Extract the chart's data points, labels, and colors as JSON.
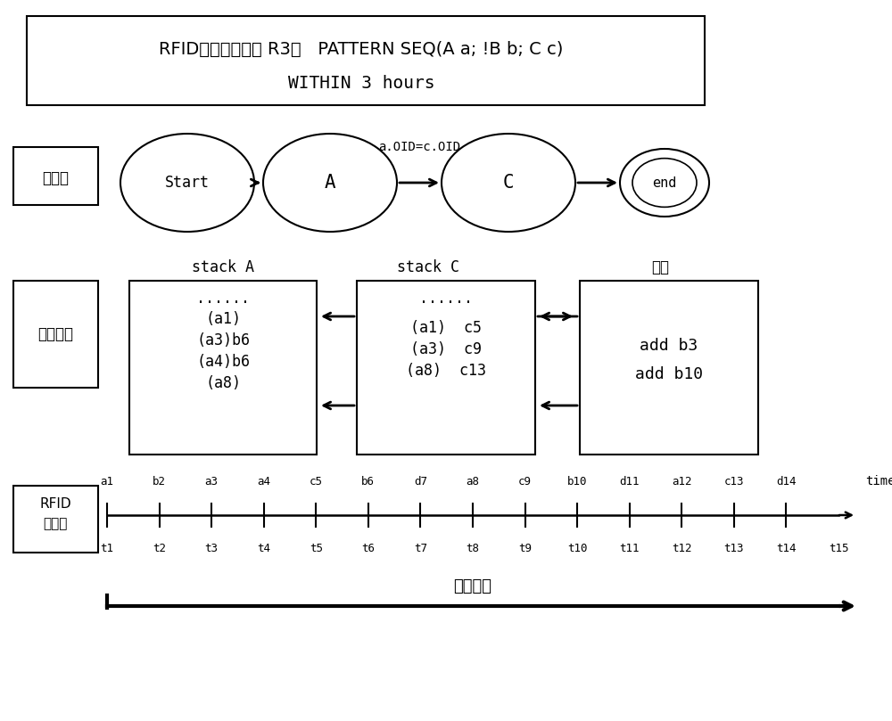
{
  "title_line1": "RFID补充漏读规则 R3：   PATTERN SEQ(A a; !B b; C c)",
  "title_line2": "WITHIN 3 hours",
  "auto_label": "自动机",
  "stack_section_label": "自动机栈",
  "stack_A_title": "stack A",
  "stack_C_title": "stack C",
  "output_title": "输出",
  "edge_label": "a.OID=c.OID",
  "stack_A_lines": [
    "......",
    "(a1)",
    "(a3)b6",
    "(a4)b6",
    "(a8)"
  ],
  "stack_C_lines": [
    "......",
    "(a1)  c5",
    "(a3)  c9",
    "(a8)  c13"
  ],
  "output_lines": [
    "add b3",
    "add b10"
  ],
  "timeline_events": [
    "a1",
    "b2",
    "a3",
    "a4",
    "c5",
    "b6",
    "d7",
    "a8",
    "c9",
    "b10",
    "d11",
    "a12",
    "c13",
    "d14"
  ],
  "timeline_times": [
    "t1",
    "t2",
    "t3",
    "t4",
    "t5",
    "t6",
    "t7",
    "t8",
    "t9",
    "t10",
    "t11",
    "t12",
    "t13",
    "t14",
    "t15"
  ],
  "rfid_label_line1": "RFID",
  "rfid_label_line2": "事件流",
  "time_label": "time",
  "sliding_label": "滑动窗口",
  "bg": "#ffffff"
}
